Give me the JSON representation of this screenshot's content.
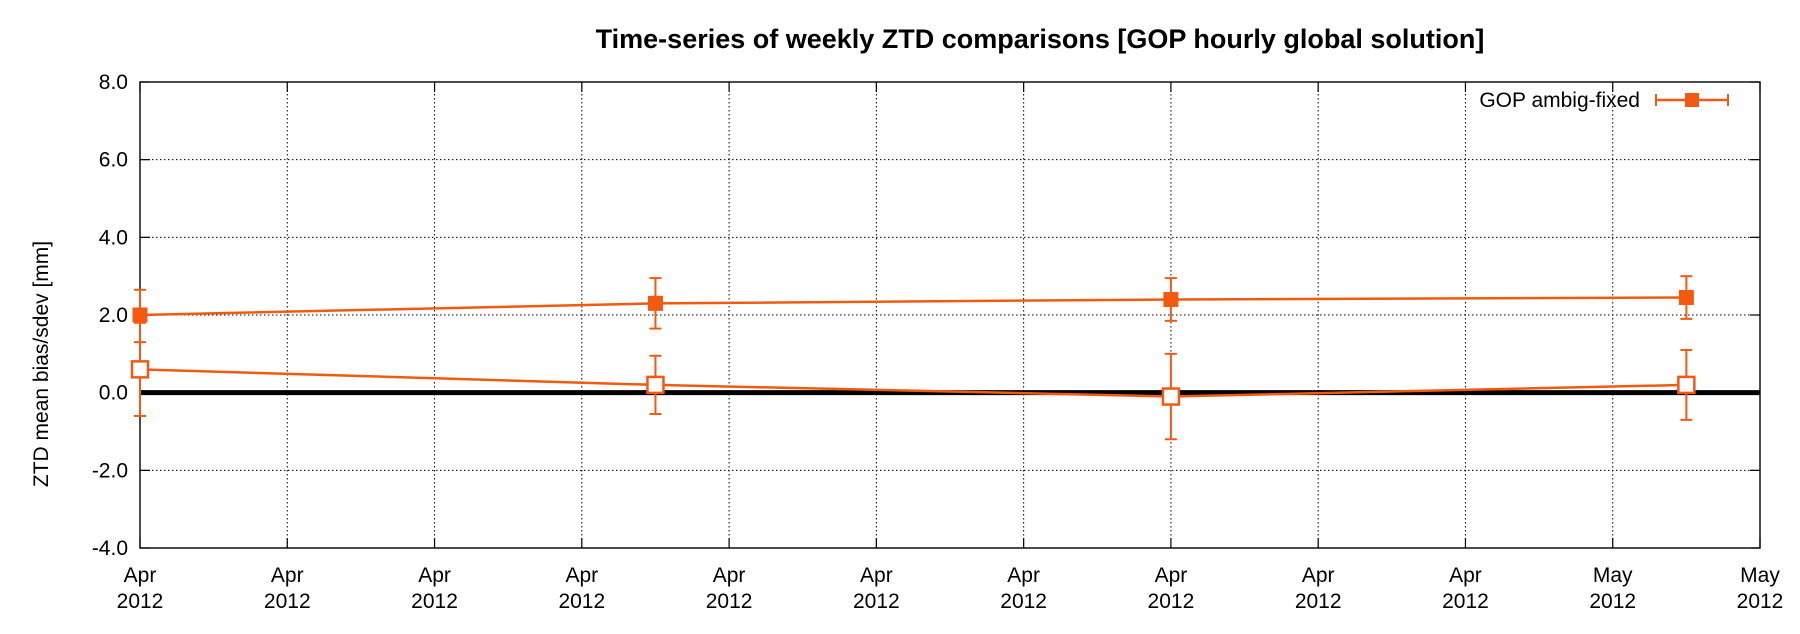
{
  "chart_data": {
    "type": "line",
    "title": "Time-series of weekly ZTD comparisons [GOP hourly global solution]",
    "xlabel": "",
    "ylabel": "ZTD mean bias/sdev [mm]",
    "ylim": [
      -4.0,
      8.0
    ],
    "yticks": [
      -4.0,
      -2.0,
      0.0,
      2.0,
      4.0,
      6.0,
      8.0
    ],
    "ytick_labels": [
      "-4.0",
      "-2.0",
      "0.0",
      "2.0",
      "4.0",
      "6.0",
      "8.0"
    ],
    "xlim": [
      0,
      11
    ],
    "xticks": [
      {
        "x": 0,
        "month": "Apr",
        "year": "2012"
      },
      {
        "x": 1,
        "month": "Apr",
        "year": "2012"
      },
      {
        "x": 2,
        "month": "Apr",
        "year": "2012"
      },
      {
        "x": 3,
        "month": "Apr",
        "year": "2012"
      },
      {
        "x": 4,
        "month": "Apr",
        "year": "2012"
      },
      {
        "x": 5,
        "month": "Apr",
        "year": "2012"
      },
      {
        "x": 6,
        "month": "Apr",
        "year": "2012"
      },
      {
        "x": 7,
        "month": "Apr",
        "year": "2012"
      },
      {
        "x": 8,
        "month": "Apr",
        "year": "2012"
      },
      {
        "x": 9,
        "month": "Apr",
        "year": "2012"
      },
      {
        "x": 10,
        "month": "May",
        "year": "2012"
      },
      {
        "x": 11,
        "month": "May",
        "year": "2012"
      }
    ],
    "grid": true,
    "legend_position": "top-right",
    "zero_line": 0.0,
    "color": "#f25a12",
    "series": [
      {
        "name": "GOP ambig-fixed",
        "marker": "filled-square",
        "points": [
          {
            "x": 0.0,
            "y": 2.0,
            "lo": 1.3,
            "hi": 2.65
          },
          {
            "x": 3.5,
            "y": 2.3,
            "lo": 1.65,
            "hi": 2.95
          },
          {
            "x": 7.0,
            "y": 2.4,
            "lo": 1.85,
            "hi": 2.95
          },
          {
            "x": 10.5,
            "y": 2.45,
            "lo": 1.9,
            "hi": 3.0
          }
        ]
      },
      {
        "marker": "open-square",
        "points": [
          {
            "x": 0.0,
            "y": 0.6,
            "lo": -0.6,
            "hi": 1.8
          },
          {
            "x": 3.5,
            "y": 0.2,
            "lo": -0.55,
            "hi": 0.95
          },
          {
            "x": 7.0,
            "y": -0.1,
            "lo": -1.2,
            "hi": 1.0
          },
          {
            "x": 10.5,
            "y": 0.2,
            "lo": -0.7,
            "hi": 1.1
          }
        ]
      }
    ]
  }
}
